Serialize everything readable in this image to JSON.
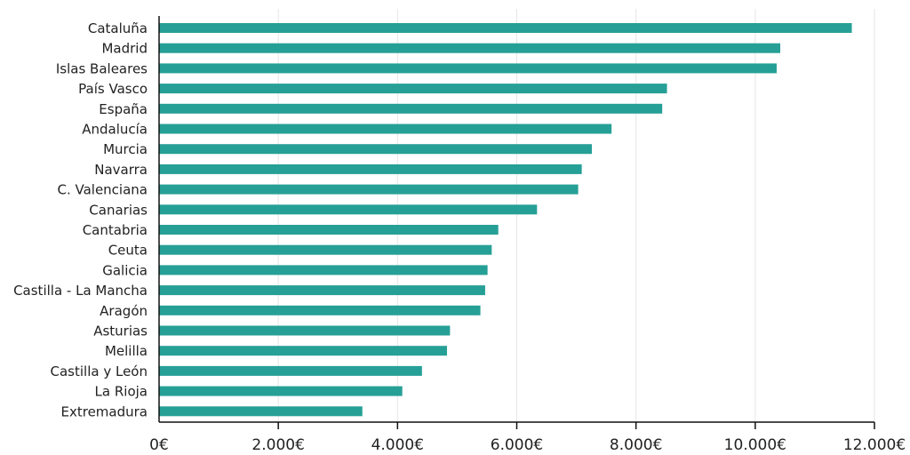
{
  "chart_data": {
    "type": "bar",
    "orientation": "horizontal",
    "title": "",
    "xlabel": "",
    "ylabel": "",
    "bar_color": "#26a096",
    "grid": true,
    "xlim": [
      0,
      12000
    ],
    "x_ticks": [
      0,
      2000,
      4000,
      6000,
      8000,
      10000,
      12000
    ],
    "x_tick_labels": [
      "0€",
      "2.000€",
      "4.000€",
      "6.000€",
      "8.000€",
      "10.000€",
      "12.000€"
    ],
    "categories": [
      "Cataluña",
      "Madrid",
      "Islas Baleares",
      "País Vasco",
      "España",
      "Andalucía",
      "Murcia",
      "Navarra",
      "C. Valenciana",
      "Canarias",
      "Cantabria",
      "Ceuta",
      "Galicia",
      "Castilla - La Mancha",
      "Aragón",
      "Asturias",
      "Melilla",
      "Castilla y León",
      "La Rioja",
      "Extremadura"
    ],
    "values": [
      11620,
      10420,
      10360,
      8520,
      8440,
      7590,
      7260,
      7090,
      7030,
      6340,
      5690,
      5580,
      5510,
      5470,
      5390,
      4880,
      4830,
      4410,
      4080,
      3410
    ]
  }
}
